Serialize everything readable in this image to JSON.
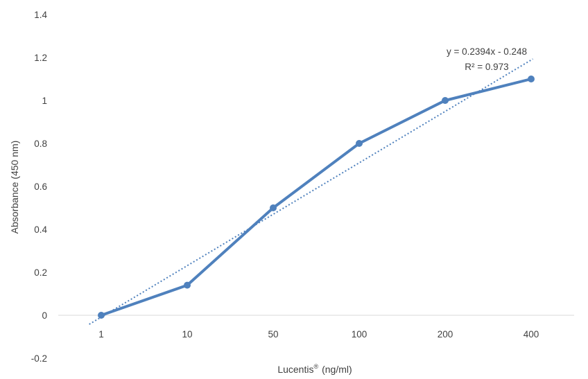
{
  "chart_data": {
    "type": "line",
    "categories": [
      "1",
      "10",
      "50",
      "100",
      "200",
      "400"
    ],
    "series": [
      {
        "values": [
          0,
          0.14,
          0.5,
          0.8,
          1.0,
          1.1
        ],
        "color": "#4f81bd"
      }
    ],
    "trendline": {
      "type": "linear",
      "slope": 0.2394,
      "intercept": -0.248,
      "equation": "y = 0.2394x - 0.248",
      "r_squared": "R² = 0.973",
      "style": "dotted",
      "color": "#4f81bd"
    },
    "xlabel": "Lucentis",
    "xlabel_superscript": "®",
    "xlabel_unit": "(ng/ml)",
    "ylabel": "Absorbance (450 nm)",
    "ylim": [
      -0.2,
      1.4
    ],
    "yticks": [
      "-0.2",
      "0",
      "0.2",
      "0.4",
      "0.6",
      "0.8",
      "1",
      "1.2",
      "1.4"
    ],
    "grid": false,
    "legend": "none"
  }
}
